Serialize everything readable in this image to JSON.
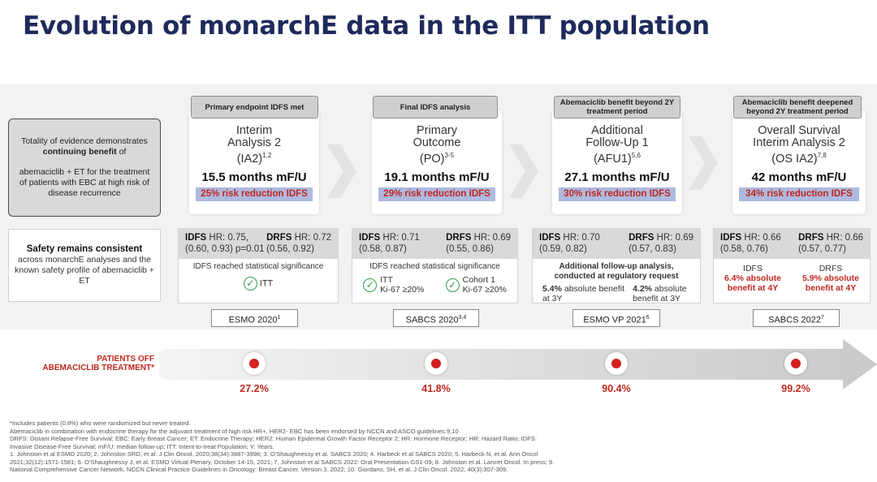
{
  "title": "Evolution of monarchE data in the ITT population",
  "left_panel": {
    "evidence_line1": "Totality of evidence demonstrates",
    "evidence_bold": "continuing benefit",
    "evidence_of": " of",
    "evidence_line2": "abemaciclib + ET for the treatment of patients with EBC at high risk of disease recurrence",
    "safety_bold": "Safety remains consistent",
    "safety_rest": "across monarchE analyses and the known safety profile of abemaciclib + ET"
  },
  "milestones": [
    {
      "header": "Primary endpoint IDFS met",
      "name_lines": [
        "Interim",
        "Analysis 2"
      ],
      "name_abbr": "(IA2)",
      "name_sup": "1,2",
      "mfu": "15.5 months mF/U",
      "risk": "25% risk reduction IDFS",
      "idfs_label": "IDFS",
      "idfs_hr": " HR: 0.75,",
      "idfs_ci": "(0.60, 0.93) p=0.01",
      "drfs_label": "DRFS",
      "drfs_hr": " HR: 0.72",
      "drfs_ci": "(0.56, 0.92)",
      "note": "IDFS reached statistical significance",
      "check1": "ITT",
      "conference": "ESMO 2020",
      "conference_sup": "1",
      "patients_off": "27.2%"
    },
    {
      "header": "Final IDFS analysis",
      "name_lines": [
        "Primary",
        "Outcome"
      ],
      "name_abbr": "(PO)",
      "name_sup": "3-5",
      "mfu": "19.1 months mF/U",
      "risk": "29% risk reduction IDFS",
      "idfs_label": "IDFS",
      "idfs_hr": " HR: 0.71",
      "idfs_ci": "(0.58, 0.87)",
      "drfs_label": "DRFS",
      "drfs_hr": " HR: 0.69",
      "drfs_ci": "(0.55, 0.86)",
      "note": "IDFS reached statistical significance",
      "check1": "ITT",
      "check1_sub": "Ki-67 ≥20%",
      "check2": "Cohort 1",
      "check2_sub": "Ki-67 ≥20%",
      "conference": "SABCS 2020",
      "conference_sup": "3,4",
      "patients_off": "41.8%"
    },
    {
      "header": "Abemaciclib benefit beyond 2Y treatment period",
      "name_lines": [
        "Additional",
        "Follow-Up 1"
      ],
      "name_abbr": "(AFU1)",
      "name_sup": "5,6",
      "mfu": "27.1 months mF/U",
      "risk": "30% risk reduction IDFS",
      "idfs_label": "IDFS",
      "idfs_hr": " HR: 0.70",
      "idfs_ci": "(0.59, 0.82)",
      "drfs_label": "DRFS",
      "drfs_hr": " HR: 0.69",
      "drfs_ci": "(0.57, 0.83)",
      "note": "Additional follow-up analysis, conducted at regulatory request",
      "val1_bold": "5.4%",
      "val1_rest": " absolute benefit at 3Y",
      "val2_bold": "4.2%",
      "val2_rest": " absolute benefit at 3Y",
      "conference": "ESMO VP 2021",
      "conference_sup": "6",
      "patients_off": "90.4%"
    },
    {
      "header": "Abemaciclib benefit deepened beyond 2Y treatment period",
      "name_lines": [
        "Overall Survival",
        "Interim Analysis 2"
      ],
      "name_abbr": "(OS IA2)",
      "name_sup": "7,8",
      "mfu": "42 months mF/U",
      "risk": "34% risk reduction IDFS",
      "idfs_label": "IDFS",
      "idfs_hr": " HR: 0.66",
      "idfs_ci": "(0.58, 0.76)",
      "drfs_label": "DRFS",
      "drfs_hr": " HR: 0.66",
      "drfs_ci": "(0.57, 0.77)",
      "b1_label": "IDFS",
      "b1_value": "6.4% absolute benefit at 4Y",
      "b2_label": "DRFS",
      "b2_value": "5.9% absolute benefit at 4Y",
      "conference": "SABCS 2022",
      "conference_sup": "7",
      "patients_off": "99.2%"
    }
  ],
  "timeline": {
    "label_line1": "PATIENTS OFF",
    "label_line2": "ABEMACICLIB TREATMENT*"
  },
  "footnotes": [
    "*Includes patients (0.8%) who were randomized but never treated.",
    "Abemaciclib in combination with endocrine therapy for the adjuvant treatment of high risk HR+, HER2- EBC has been endorsed by NCCN and ASCO guidelines.9,10",
    "DRFS: Distant Relapse-Free Survival; EBC: Early Breast Cancer; ET: Endocrine Therapy; HER2: Human Epidermal Growth Factor Receptor 2; HR: Hormone Receptor; HR: Hazard Ratio; IDFS:",
    "Invasive Disease-Free Survival; mF/U: median follow-up; ITT: Intent-to-treat Population; Y: Years.",
    "1. Johnston et al ESMO 2020; 2. Johnston SRD, et al. J Clin Oncol. 2020;38(34):3987-3998; 3. O'Shaughnessy et al. SABCS 2020; 4. Harbeck et al SABCS 2020; 5. Harbeck N, et al. Ann Oncol",
    "2021;32(12):1571-1581; 6. O'Shaughnessy J, et al. ESMO Virtual Plenary, October 14-15, 2021; 7. Johnston et al SABCS 2022: Oral Presentation GS1-09; 8. Johnston et al. Lancet Oncol. In press; 9.",
    "National Comprehensive Cancer Network. NCCN Clinical Practice Guidelines in Oncology: Breast Cancer. Version 3. 2022; 10. Giordano, SH, et al. J Clin Oncol. 2022; 40(3):307-309."
  ]
}
